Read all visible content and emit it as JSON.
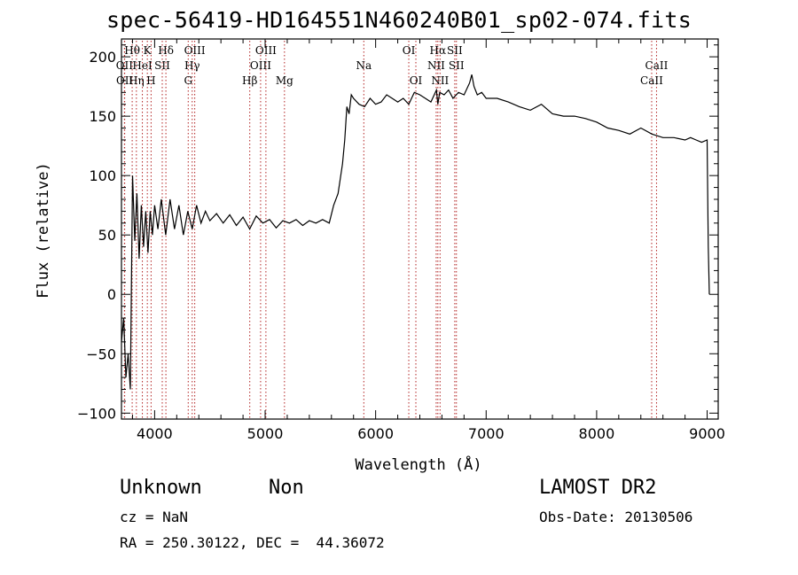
{
  "chart_data": {
    "type": "line",
    "title": "spec-56419-HD164551N460240B01_sp02-074.fits",
    "xlabel": "Wavelength (Å)",
    "ylabel": "Flux (relative)",
    "xlim": [
      3700,
      9100
    ],
    "ylim": [
      -105,
      215
    ],
    "xticks": [
      {
        "v": 4000,
        "label": "4000"
      },
      {
        "v": 5000,
        "label": "5000"
      },
      {
        "v": 6000,
        "label": "6000"
      },
      {
        "v": 7000,
        "label": "7000"
      },
      {
        "v": 8000,
        "label": "8000"
      },
      {
        "v": 9000,
        "label": "9000"
      }
    ],
    "yticks": [
      {
        "v": -100,
        "label": "−100"
      },
      {
        "v": -50,
        "label": "−50"
      },
      {
        "v": 0,
        "label": "0"
      },
      {
        "v": 50,
        "label": "50"
      },
      {
        "v": 100,
        "label": "100"
      },
      {
        "v": 150,
        "label": "150"
      },
      {
        "v": 200,
        "label": "200"
      }
    ],
    "spectrum": {
      "x": [
        3700,
        3720,
        3740,
        3760,
        3780,
        3800,
        3820,
        3840,
        3860,
        3880,
        3900,
        3920,
        3940,
        3960,
        3980,
        4000,
        4030,
        4060,
        4100,
        4140,
        4180,
        4220,
        4260,
        4300,
        4340,
        4380,
        4420,
        4460,
        4500,
        4560,
        4620,
        4680,
        4740,
        4800,
        4860,
        4920,
        4980,
        5040,
        5100,
        5160,
        5220,
        5280,
        5340,
        5400,
        5460,
        5520,
        5580,
        5620,
        5660,
        5700,
        5720,
        5740,
        5760,
        5780,
        5800,
        5850,
        5900,
        5950,
        6000,
        6050,
        6100,
        6150,
        6200,
        6250,
        6300,
        6350,
        6400,
        6450,
        6500,
        6550,
        6563,
        6580,
        6620,
        6660,
        6700,
        6750,
        6800,
        6850,
        6870,
        6890,
        6920,
        6960,
        7000,
        7100,
        7200,
        7300,
        7400,
        7500,
        7600,
        7700,
        7800,
        7900,
        8000,
        8100,
        8200,
        8300,
        8400,
        8500,
        8600,
        8700,
        8800,
        8850,
        8900,
        8950,
        9000,
        9010,
        9020
      ],
      "y": [
        -40,
        -20,
        -70,
        -50,
        -80,
        100,
        45,
        85,
        30,
        75,
        40,
        70,
        35,
        70,
        50,
        75,
        55,
        80,
        50,
        80,
        55,
        75,
        50,
        70,
        55,
        75,
        60,
        70,
        62,
        68,
        60,
        67,
        58,
        65,
        55,
        66,
        60,
        63,
        56,
        62,
        60,
        63,
        58,
        62,
        60,
        63,
        60,
        75,
        85,
        110,
        130,
        158,
        152,
        168,
        165,
        160,
        158,
        165,
        160,
        162,
        168,
        165,
        162,
        165,
        160,
        170,
        168,
        165,
        162,
        172,
        160,
        170,
        168,
        172,
        165,
        170,
        168,
        178,
        185,
        175,
        168,
        170,
        165,
        165,
        162,
        158,
        155,
        160,
        152,
        150,
        150,
        148,
        145,
        140,
        138,
        135,
        140,
        135,
        132,
        132,
        130,
        132,
        130,
        128,
        130,
        40,
        0
      ]
    },
    "lines": [
      {
        "label": "Hθ",
        "x": 3797,
        "row": 0
      },
      {
        "label": "OII",
        "x": 3727,
        "row": 1
      },
      {
        "label": "OII",
        "x": 3729,
        "row": 2
      },
      {
        "label": "Hη",
        "x": 3835,
        "row": 2
      },
      {
        "label": "HeI",
        "x": 3889,
        "row": 1
      },
      {
        "label": "K",
        "x": 3934,
        "row": 0
      },
      {
        "label": "H",
        "x": 3968,
        "row": 2
      },
      {
        "label": "SII",
        "x": 4069,
        "row": 1
      },
      {
        "label": "Hδ",
        "x": 4102,
        "row": 0
      },
      {
        "label": "OIII",
        "x": 4363,
        "row": 0
      },
      {
        "label": "Hγ",
        "x": 4340,
        "row": 1
      },
      {
        "label": "G",
        "x": 4304,
        "row": 2
      },
      {
        "label": "Hβ",
        "x": 4861,
        "row": 2
      },
      {
        "label": "OIII",
        "x": 5007,
        "row": 0
      },
      {
        "label": "OIII",
        "x": 4959,
        "row": 1
      },
      {
        "label": "Mg",
        "x": 5175,
        "row": 2
      },
      {
        "label": "Na",
        "x": 5893,
        "row": 1
      },
      {
        "label": "OI",
        "x": 6300,
        "row": 0
      },
      {
        "label": "OI",
        "x": 6364,
        "row": 2
      },
      {
        "label": "Hα",
        "x": 6563,
        "row": 0
      },
      {
        "label": "NII",
        "x": 6548,
        "row": 1
      },
      {
        "label": "NII",
        "x": 6583,
        "row": 2
      },
      {
        "label": "SII",
        "x": 6716,
        "row": 0
      },
      {
        "label": "SII",
        "x": 6731,
        "row": 1
      },
      {
        "label": "CaII",
        "x": 8542,
        "row": 1
      },
      {
        "label": "CaII",
        "x": 8498,
        "row": 2
      }
    ]
  },
  "info": {
    "object_class": "Unknown",
    "subclass": "Non",
    "cz": "cz = NaN",
    "coords": "RA = 250.30122, DEC =  44.36072",
    "survey": "LAMOST DR2",
    "obs_date": "Obs-Date: 20130506"
  },
  "colors": {
    "line": "#000000",
    "marker": "#b22222"
  }
}
